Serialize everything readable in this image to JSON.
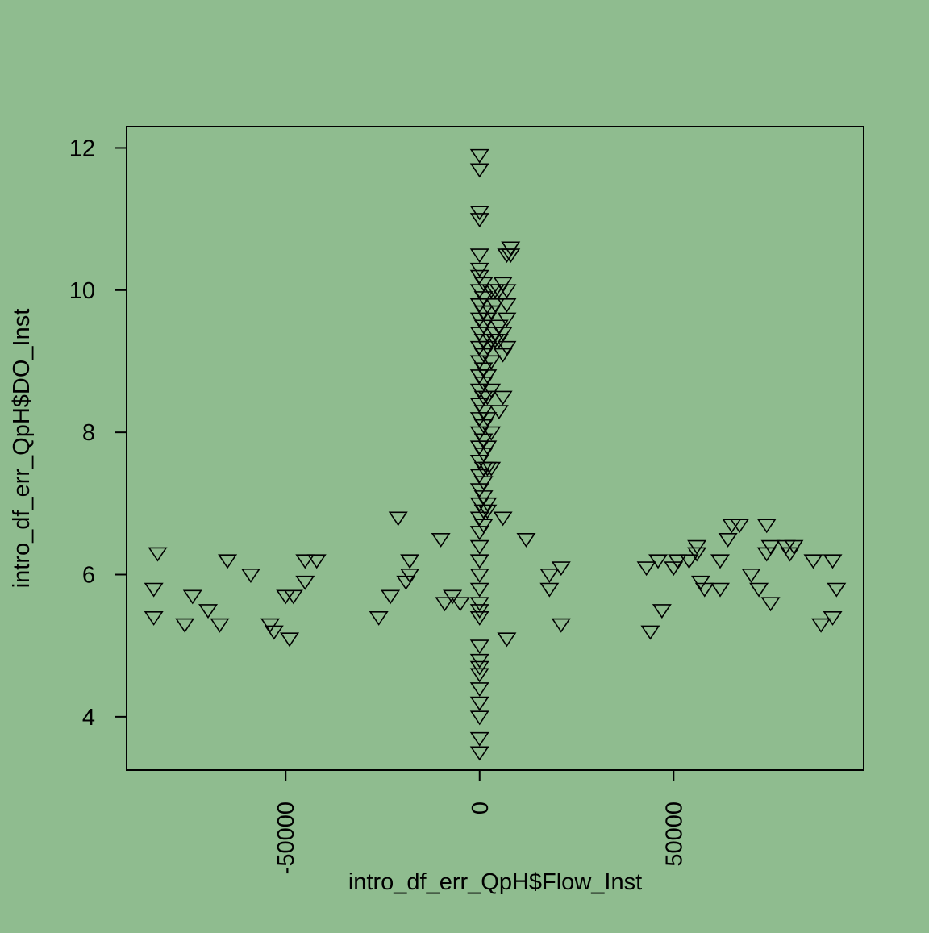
{
  "colors": {
    "background": "#8fbc8f",
    "foreground": "#000000"
  },
  "chart_data": {
    "type": "scatter",
    "marker": "triangle-down-open",
    "title": "",
    "xlabel": "intro_df_err_QpH$Flow_Inst",
    "ylabel": "intro_df_err_QpH$DO_Inst",
    "xlim": [
      -91000,
      99000
    ],
    "ylim": [
      3.25,
      12.3
    ],
    "xticks": [
      -50000,
      0,
      50000
    ],
    "xtick_labels": [
      "-50000",
      "0",
      "50000"
    ],
    "yticks": [
      4,
      6,
      8,
      10,
      12
    ],
    "ytick_labels": [
      "4",
      "6",
      "8",
      "10",
      "12"
    ],
    "grid": false,
    "legend": "none",
    "points": [
      [
        -84000,
        5.4
      ],
      [
        -83000,
        6.3
      ],
      [
        -84000,
        5.8
      ],
      [
        -76000,
        5.3
      ],
      [
        -74000,
        5.7
      ],
      [
        -70000,
        5.5
      ],
      [
        -67000,
        5.3
      ],
      [
        -65000,
        6.2
      ],
      [
        -59000,
        6.0
      ],
      [
        -54000,
        5.3
      ],
      [
        -53000,
        5.2
      ],
      [
        -50000,
        5.7
      ],
      [
        -49000,
        5.1
      ],
      [
        -48000,
        5.7
      ],
      [
        -45000,
        5.9
      ],
      [
        -45000,
        6.2
      ],
      [
        -42000,
        6.2
      ],
      [
        -26000,
        5.4
      ],
      [
        -23000,
        5.7
      ],
      [
        -21000,
        6.8
      ],
      [
        -19000,
        5.9
      ],
      [
        -18000,
        6.2
      ],
      [
        -18000,
        6.0
      ],
      [
        -10000,
        6.5
      ],
      [
        -9000,
        5.6
      ],
      [
        -7000,
        5.7
      ],
      [
        -5000,
        5.6
      ],
      [
        0,
        11.9
      ],
      [
        0,
        11.7
      ],
      [
        0,
        11.1
      ],
      [
        0,
        11.0
      ],
      [
        0,
        10.5
      ],
      [
        0,
        10.3
      ],
      [
        0,
        10.2
      ],
      [
        0,
        10.0
      ],
      [
        0,
        9.8
      ],
      [
        0,
        9.6
      ],
      [
        0,
        9.4
      ],
      [
        0,
        9.2
      ],
      [
        0,
        9.0
      ],
      [
        0,
        8.8
      ],
      [
        0,
        8.6
      ],
      [
        0,
        8.4
      ],
      [
        0,
        8.2
      ],
      [
        0,
        8.0
      ],
      [
        0,
        7.8
      ],
      [
        0,
        7.6
      ],
      [
        0,
        7.4
      ],
      [
        0,
        7.2
      ],
      [
        0,
        7.0
      ],
      [
        0,
        6.8
      ],
      [
        0,
        6.6
      ],
      [
        0,
        6.4
      ],
      [
        0,
        6.2
      ],
      [
        0,
        6.0
      ],
      [
        0,
        5.8
      ],
      [
        0,
        5.6
      ],
      [
        0,
        5.5
      ],
      [
        0,
        5.4
      ],
      [
        0,
        5.0
      ],
      [
        0,
        4.8
      ],
      [
        0,
        4.7
      ],
      [
        0,
        4.6
      ],
      [
        0,
        4.4
      ],
      [
        0,
        4.2
      ],
      [
        0,
        4.0
      ],
      [
        0,
        3.7
      ],
      [
        0,
        3.5
      ],
      [
        1000,
        10.1
      ],
      [
        1000,
        9.9
      ],
      [
        1000,
        9.7
      ],
      [
        1000,
        9.5
      ],
      [
        1000,
        9.3
      ],
      [
        1000,
        9.1
      ],
      [
        1000,
        8.9
      ],
      [
        1000,
        8.7
      ],
      [
        1000,
        8.5
      ],
      [
        1000,
        8.3
      ],
      [
        1000,
        8.1
      ],
      [
        1000,
        7.9
      ],
      [
        1000,
        7.7
      ],
      [
        1000,
        7.5
      ],
      [
        1000,
        7.3
      ],
      [
        1000,
        7.1
      ],
      [
        1000,
        6.9
      ],
      [
        1000,
        6.7
      ],
      [
        2000,
        9.6
      ],
      [
        2000,
        9.2
      ],
      [
        2000,
        8.8
      ],
      [
        2000,
        8.5
      ],
      [
        2000,
        8.2
      ],
      [
        2000,
        7.8
      ],
      [
        2000,
        7.5
      ],
      [
        2000,
        7.0
      ],
      [
        2000,
        6.9
      ],
      [
        3000,
        10.0
      ],
      [
        3000,
        9.7
      ],
      [
        3000,
        9.3
      ],
      [
        3000,
        9.0
      ],
      [
        3000,
        8.6
      ],
      [
        3000,
        8.0
      ],
      [
        3000,
        7.5
      ],
      [
        4000,
        10.0
      ],
      [
        4000,
        9.8
      ],
      [
        4000,
        9.4
      ],
      [
        4000,
        9.3
      ],
      [
        5000,
        10.0
      ],
      [
        5000,
        9.5
      ],
      [
        5000,
        9.3
      ],
      [
        5000,
        8.3
      ],
      [
        6000,
        10.1
      ],
      [
        6000,
        9.4
      ],
      [
        6000,
        9.1
      ],
      [
        6000,
        8.5
      ],
      [
        6000,
        6.8
      ],
      [
        7000,
        10.5
      ],
      [
        7000,
        10.0
      ],
      [
        7000,
        9.8
      ],
      [
        7000,
        9.6
      ],
      [
        7000,
        9.2
      ],
      [
        7000,
        5.1
      ],
      [
        8000,
        10.6
      ],
      [
        8000,
        10.5
      ],
      [
        12000,
        6.5
      ],
      [
        18000,
        6.0
      ],
      [
        18000,
        5.8
      ],
      [
        21000,
        6.1
      ],
      [
        21000,
        5.3
      ],
      [
        43000,
        6.1
      ],
      [
        44000,
        5.2
      ],
      [
        46000,
        6.2
      ],
      [
        47000,
        5.5
      ],
      [
        50000,
        6.1
      ],
      [
        51000,
        6.2
      ],
      [
        54000,
        6.2
      ],
      [
        56000,
        6.4
      ],
      [
        56000,
        6.3
      ],
      [
        57000,
        5.9
      ],
      [
        58000,
        5.8
      ],
      [
        62000,
        5.8
      ],
      [
        62000,
        6.2
      ],
      [
        64000,
        6.5
      ],
      [
        65000,
        6.7
      ],
      [
        67000,
        6.7
      ],
      [
        70000,
        6.0
      ],
      [
        72000,
        5.8
      ],
      [
        74000,
        6.7
      ],
      [
        74000,
        6.3
      ],
      [
        75000,
        5.6
      ],
      [
        75000,
        6.4
      ],
      [
        79000,
        6.4
      ],
      [
        80000,
        6.3
      ],
      [
        81000,
        6.4
      ],
      [
        86000,
        6.2
      ],
      [
        88000,
        5.3
      ],
      [
        91000,
        5.4
      ],
      [
        91000,
        6.2
      ],
      [
        92000,
        5.8
      ]
    ]
  }
}
